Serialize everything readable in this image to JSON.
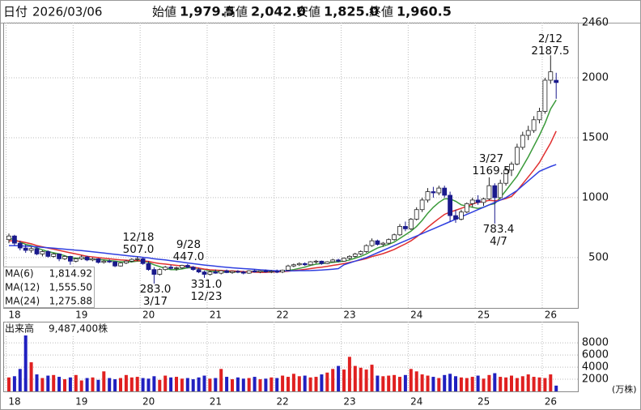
{
  "header": {
    "items": [
      {
        "label": "日付",
        "value": "2026/03/06"
      },
      {
        "label": "始値",
        "value": "1,979.5"
      },
      {
        "label": "高値",
        "value": "2,042.0",
        "color": "#e00000"
      },
      {
        "label": "安値",
        "value": "1,825.0",
        "color": "#1a9a1a"
      },
      {
        "label": "終値",
        "value": "1,960.5"
      }
    ]
  },
  "chart_data": [
    {
      "type": "candlestick",
      "categories": [
        "18",
        null,
        null,
        null,
        null,
        null,
        null,
        null,
        null,
        null,
        null,
        null,
        "19",
        null,
        null,
        null,
        null,
        null,
        null,
        null,
        null,
        null,
        null,
        null,
        "20",
        null,
        null,
        null,
        null,
        null,
        null,
        null,
        null,
        null,
        null,
        null,
        "21",
        null,
        null,
        null,
        null,
        null,
        null,
        null,
        null,
        null,
        null,
        null,
        "22",
        null,
        null,
        null,
        null,
        null,
        null,
        null,
        null,
        null,
        null,
        null,
        "23",
        null,
        null,
        null,
        null,
        null,
        null,
        null,
        null,
        null,
        null,
        null,
        "24",
        null,
        null,
        null,
        null,
        null,
        null,
        null,
        null,
        null,
        null,
        null,
        "25",
        null,
        null,
        null,
        null,
        null,
        null,
        null,
        null,
        null,
        null,
        null,
        "26",
        null,
        null
      ],
      "ohlc": [
        [
          650,
          700,
          620,
          680
        ],
        [
          680,
          690,
          600,
          620
        ],
        [
          620,
          640,
          560,
          580
        ],
        [
          580,
          610,
          540,
          560
        ],
        [
          560,
          590,
          540,
          575
        ],
        [
          575,
          585,
          520,
          530
        ],
        [
          530,
          560,
          510,
          550
        ],
        [
          550,
          560,
          500,
          510
        ],
        [
          510,
          540,
          500,
          530
        ],
        [
          530,
          535,
          470,
          490
        ],
        [
          490,
          520,
          480,
          510
        ],
        [
          510,
          515,
          440,
          470
        ],
        [
          470,
          500,
          460,
          490
        ],
        [
          490,
          520,
          480,
          505
        ],
        [
          505,
          515,
          470,
          480
        ],
        [
          480,
          500,
          470,
          490
        ],
        [
          490,
          495,
          450,
          460
        ],
        [
          460,
          480,
          450,
          470
        ],
        [
          470,
          485,
          455,
          465
        ],
        [
          465,
          470,
          420,
          430
        ],
        [
          430,
          460,
          425,
          455
        ],
        [
          455,
          480,
          445,
          470
        ],
        [
          470,
          495,
          460,
          485
        ],
        [
          485,
          507,
          470,
          490
        ],
        [
          490,
          500,
          440,
          450
        ],
        [
          450,
          470,
          390,
          400
        ],
        [
          400,
          420,
          283,
          360
        ],
        [
          360,
          410,
          350,
          400
        ],
        [
          400,
          430,
          390,
          420
        ],
        [
          420,
          440,
          400,
          410
        ],
        [
          410,
          425,
          390,
          415
        ],
        [
          415,
          440,
          405,
          435
        ],
        [
          435,
          447,
          410,
          420
        ],
        [
          420,
          430,
          390,
          400
        ],
        [
          400,
          415,
          370,
          380
        ],
        [
          380,
          390,
          331,
          360
        ],
        [
          360,
          390,
          350,
          380
        ],
        [
          380,
          400,
          365,
          370
        ],
        [
          370,
          395,
          360,
          390
        ],
        [
          390,
          400,
          370,
          375
        ],
        [
          375,
          390,
          365,
          385
        ],
        [
          385,
          395,
          370,
          380
        ],
        [
          380,
          390,
          360,
          370
        ],
        [
          370,
          395,
          365,
          390
        ],
        [
          390,
          400,
          375,
          380
        ],
        [
          380,
          395,
          370,
          390
        ],
        [
          390,
          400,
          375,
          380
        ],
        [
          380,
          395,
          370,
          385
        ],
        [
          385,
          400,
          370,
          380
        ],
        [
          380,
          400,
          370,
          395
        ],
        [
          395,
          440,
          390,
          430
        ],
        [
          430,
          450,
          420,
          440
        ],
        [
          440,
          460,
          430,
          450
        ],
        [
          450,
          460,
          430,
          440
        ],
        [
          440,
          470,
          435,
          465
        ],
        [
          465,
          480,
          450,
          470
        ],
        [
          470,
          475,
          440,
          450
        ],
        [
          450,
          470,
          445,
          465
        ],
        [
          465,
          490,
          460,
          480
        ],
        [
          480,
          490,
          460,
          470
        ],
        [
          470,
          500,
          465,
          495
        ],
        [
          495,
          520,
          480,
          510
        ],
        [
          510,
          540,
          500,
          530
        ],
        [
          530,
          560,
          520,
          550
        ],
        [
          550,
          610,
          540,
          600
        ],
        [
          600,
          660,
          590,
          640
        ],
        [
          640,
          650,
          600,
          610
        ],
        [
          610,
          630,
          590,
          620
        ],
        [
          620,
          660,
          610,
          650
        ],
        [
          650,
          700,
          640,
          690
        ],
        [
          690,
          780,
          680,
          760
        ],
        [
          760,
          800,
          720,
          740
        ],
        [
          740,
          830,
          730,
          820
        ],
        [
          820,
          920,
          810,
          900
        ],
        [
          900,
          1000,
          880,
          980
        ],
        [
          980,
          1080,
          960,
          1050
        ],
        [
          1050,
          1090,
          1000,
          1040
        ],
        [
          1040,
          1100,
          1020,
          1080
        ],
        [
          1080,
          1100,
          1000,
          1020
        ],
        [
          1020,
          1050,
          800,
          850
        ],
        [
          850,
          900,
          790,
          820
        ],
        [
          820,
          900,
          810,
          880
        ],
        [
          880,
          960,
          870,
          950
        ],
        [
          950,
          1000,
          920,
          980
        ],
        [
          980,
          1020,
          940,
          960
        ],
        [
          960,
          1000,
          930,
          990
        ],
        [
          990,
          1169.5,
          980,
          1100
        ],
        [
          1100,
          1120,
          783.4,
          1000
        ],
        [
          1000,
          1150,
          990,
          1120
        ],
        [
          1120,
          1250,
          1100,
          1230
        ],
        [
          1230,
          1300,
          1180,
          1280
        ],
        [
          1280,
          1450,
          1270,
          1420
        ],
        [
          1420,
          1550,
          1400,
          1520
        ],
        [
          1520,
          1600,
          1480,
          1560
        ],
        [
          1560,
          1680,
          1540,
          1650
        ],
        [
          1650,
          1750,
          1620,
          1720
        ],
        [
          1720,
          2000,
          1700,
          1980
        ],
        [
          1980,
          2187.5,
          1950,
          2050
        ],
        [
          1979.5,
          2042,
          1825,
          1960.5
        ]
      ],
      "up_color": "#ffffff",
      "down_color": "#1a1a8c",
      "outline_color": "#222222",
      "series": [
        {
          "name": "MA(6)",
          "color": "#3a9a3a",
          "legend_value": "1,814.92",
          "values": [
            660,
            650,
            630,
            610,
            600,
            580,
            565,
            550,
            540,
            530,
            515,
            500,
            495,
            495,
            490,
            485,
            485,
            480,
            475,
            470,
            465,
            465,
            465,
            470,
            470,
            460,
            440,
            425,
            410,
            400,
            400,
            405,
            415,
            415,
            410,
            400,
            390,
            385,
            380,
            380,
            380,
            380,
            380,
            380,
            382,
            383,
            383,
            385,
            385,
            385,
            392,
            400,
            410,
            420,
            435,
            445,
            450,
            455,
            460,
            465,
            470,
            480,
            495,
            510,
            530,
            555,
            580,
            595,
            610,
            630,
            660,
            690,
            720,
            760,
            810,
            870,
            920,
            960,
            990,
            990,
            970,
            940,
            930,
            920,
            910,
            920,
            940,
            950,
            1000,
            1060,
            1120,
            1180,
            1260,
            1340,
            1430,
            1520,
            1620,
            1740,
            1814.92
          ]
        },
        {
          "name": "MA(12)",
          "color": "#e03030",
          "legend_value": "1,555.50",
          "values": [
            640,
            640,
            635,
            625,
            615,
            600,
            590,
            580,
            570,
            560,
            550,
            540,
            530,
            520,
            510,
            505,
            500,
            495,
            490,
            485,
            480,
            478,
            475,
            475,
            473,
            468,
            458,
            450,
            446,
            440,
            435,
            430,
            425,
            420,
            412,
            404,
            398,
            395,
            393,
            390,
            388,
            386,
            382,
            380,
            378,
            377,
            377,
            380,
            380,
            382,
            386,
            391,
            396,
            401,
            408,
            415,
            420,
            427,
            435,
            442,
            450,
            460,
            470,
            480,
            492,
            508,
            520,
            533,
            550,
            568,
            592,
            614,
            640,
            672,
            710,
            752,
            790,
            826,
            860,
            880,
            895,
            911,
            927,
            947,
            960,
            967,
            977,
            973,
            980,
            993,
            1010,
            1058,
            1116,
            1173,
            1231,
            1293,
            1375,
            1456,
            1555.5
          ]
        },
        {
          "name": "MA(24)",
          "color": "#3040e0",
          "legend_value": "1,275.88",
          "values": [
            600,
            600,
            598,
            596,
            594,
            590,
            586,
            582,
            578,
            574,
            570,
            566,
            562,
            558,
            553,
            548,
            543,
            538,
            532,
            527,
            522,
            517,
            512,
            507,
            502,
            497,
            490,
            485,
            480,
            474,
            468,
            462,
            455,
            449,
            443,
            438,
            433,
            428,
            423,
            419,
            415,
            411,
            408,
            405,
            402,
            398,
            395,
            392,
            390,
            389,
            389,
            390,
            391,
            391,
            392,
            394,
            396,
            399,
            403,
            408,
            440,
            455,
            470,
            485,
            500,
            520,
            540,
            560,
            580,
            600,
            620,
            640,
            660,
            680,
            700,
            720,
            740,
            760,
            780,
            800,
            820,
            840,
            860,
            880,
            900,
            920,
            940,
            960,
            980,
            1000,
            1030,
            1060,
            1100,
            1140,
            1180,
            1220,
            1240,
            1260,
            1275.88
          ]
        }
      ],
      "ylim": [
        80,
        2460
      ],
      "yticks": [
        500,
        1000,
        1500,
        2000,
        2460
      ],
      "grid": true,
      "annotations": [
        {
          "lines": [
            "2/12",
            "2187.5"
          ]
        },
        {
          "lines": [
            "3/27",
            "1169.5"
          ]
        },
        {
          "lines": [
            "783.4",
            "4/7"
          ]
        },
        {
          "lines": [
            "12/18",
            "507.0"
          ]
        },
        {
          "lines": [
            "9/28",
            "447.0"
          ]
        },
        {
          "lines": [
            "283.0",
            "3/17"
          ]
        },
        {
          "lines": [
            "331.0",
            "12/23"
          ]
        }
      ]
    },
    {
      "type": "bar",
      "title": "出来高",
      "subtitle": "9,487,400株",
      "unit": "(万株)",
      "categories": [
        "18",
        null,
        null,
        null,
        null,
        null,
        null,
        null,
        null,
        null,
        null,
        null,
        "19",
        null,
        null,
        null,
        null,
        null,
        null,
        null,
        null,
        null,
        null,
        null,
        "20",
        null,
        null,
        null,
        null,
        null,
        null,
        null,
        null,
        null,
        null,
        null,
        "21",
        null,
        null,
        null,
        null,
        null,
        null,
        null,
        null,
        null,
        null,
        null,
        "22",
        null,
        null,
        null,
        null,
        null,
        null,
        null,
        null,
        null,
        null,
        null,
        "23",
        null,
        null,
        null,
        null,
        null,
        null,
        null,
        null,
        null,
        null,
        null,
        "24",
        null,
        null,
        null,
        null,
        null,
        null,
        null,
        null,
        null,
        null,
        null,
        "25",
        null,
        null,
        null,
        null,
        null,
        null,
        null,
        null,
        null,
        null,
        null,
        "26",
        null,
        null
      ],
      "values": [
        2300,
        2500,
        3700,
        9400,
        4800,
        2800,
        2200,
        2600,
        2700,
        2400,
        2000,
        2300,
        2700,
        1800,
        2200,
        2300,
        1900,
        3300,
        2200,
        2000,
        2200,
        2700,
        2300,
        2400,
        2200,
        2100,
        2500,
        1900,
        2600,
        2300,
        2400,
        2100,
        2200,
        2000,
        2300,
        2600,
        2100,
        2200,
        3700,
        2400,
        2000,
        2300,
        2100,
        2200,
        2400,
        2000,
        2100,
        2300,
        2200,
        2600,
        2400,
        2900,
        2500,
        2600,
        2300,
        2400,
        2800,
        3100,
        3700,
        4200,
        3600,
        5700,
        4200,
        3900,
        3600,
        4400,
        2600,
        2500,
        2600,
        2700,
        2400,
        2700,
        3700,
        3300,
        2800,
        2600,
        2400,
        2200,
        2700,
        2900,
        2500,
        2300,
        2200,
        2400,
        2600,
        2100,
        2700,
        3000,
        2400,
        2300,
        2600,
        2200,
        2500,
        2800,
        2400,
        2300,
        2200,
        2800,
        949
      ],
      "up_color": "#e02020",
      "down_color": "#2020c0",
      "ylim": [
        0,
        11500
      ],
      "yticks": [
        2000,
        4000,
        6000,
        8000
      ],
      "grid": true
    }
  ]
}
